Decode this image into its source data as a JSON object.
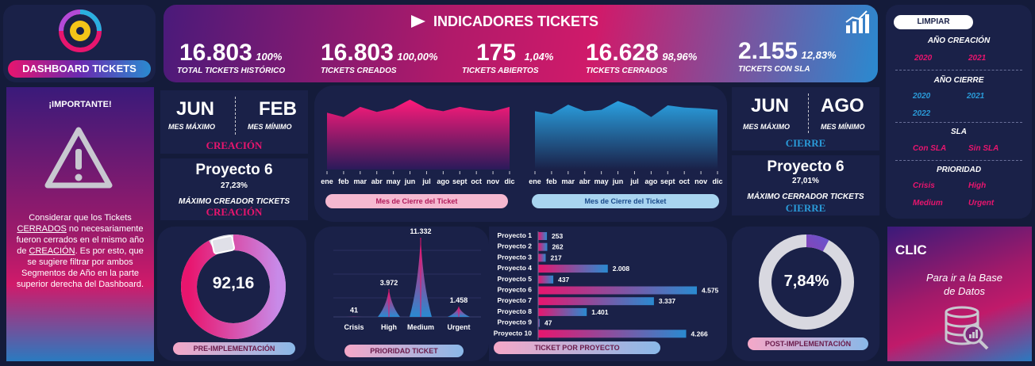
{
  "logo": {
    "label": "DASHBOARD TICKETS"
  },
  "header": {
    "title": "INDICADORES TICKETS",
    "kpis": [
      {
        "value": "16.803",
        "pct": "100%",
        "label": "TOTAL TICKETS HISTÓRICO"
      },
      {
        "value": "16.803",
        "pct": "100,00%",
        "label": "TICKETS CREADOS"
      },
      {
        "value": "175",
        "pct": "1,04%",
        "label": "TICKETS ABIERTOS"
      },
      {
        "value": "16.628",
        "pct": "98,96%",
        "label": "TICKETS CERRADOS"
      },
      {
        "value": "2.155",
        "pct": "12,83%",
        "label": "TICKETS CON SLA"
      }
    ]
  },
  "filters": {
    "clear_label": "LIMPIAR",
    "anio_creacion": {
      "title": "AÑO CREACIÓN",
      "items": [
        "2020",
        "2021"
      ]
    },
    "anio_cierre": {
      "title": "AÑO CIERRE",
      "items": [
        "2020",
        "2021",
        "2022"
      ]
    },
    "sla": {
      "title": "SLA",
      "items": [
        "Con SLA",
        "Sin SLA"
      ]
    },
    "prioridad": {
      "title": "PRIORIDAD",
      "items": [
        "Crisis",
        "High",
        "Medium",
        "Urgent"
      ]
    }
  },
  "important": {
    "title": "¡IMPORTANTE!",
    "text_a": "Considerar que los Tickets ",
    "text_b": "CERRADOS",
    "text_c": " no necesariamente fueron cerrados en el mismo año de ",
    "text_d": "CREACIÓN",
    "text_e": ". Es por esto, que se sugiere filtrar por ambos Segmentos de Año en la parte superior derecha del Dashboard."
  },
  "creacion": {
    "max_month": "JUN",
    "max_label": "MES MÁXIMO",
    "min_month": "FEB",
    "min_label": "MES MÍNIMO",
    "tag": "CREACIÓN",
    "project": "Proyecto 6",
    "project_pct": "27,23%",
    "project_label": "MÁXIMO CREADOR TICKETS",
    "project_tag": "CREACIÓN"
  },
  "cierre": {
    "max_month": "JUN",
    "max_label": "MES MÁXIMO",
    "min_month": "AGO",
    "min_label": "MES MÍNIMO",
    "tag": "CIERRE",
    "project": "Proyecto 6",
    "project_pct": "27,01%",
    "project_label": "MÁXIMO CERRADOR TICKETS",
    "project_tag": "CIERRE"
  },
  "area_charts": {
    "months": [
      "ene",
      "feb",
      "mar",
      "abr",
      "may",
      "jun",
      "jul",
      "ago",
      "sept",
      "oct",
      "nov",
      "dic"
    ],
    "left_label": "Mes de Cierre del Ticket",
    "right_label": "Mes de Cierre del Ticket"
  },
  "pre": {
    "value": "92,16",
    "label": "PRE-IMPLEMENTACIÓN",
    "fraction": 0.9216
  },
  "post": {
    "value": "7,84%",
    "label": "POST-IMPLEMENTACIÓN",
    "fraction": 0.0784
  },
  "clic": {
    "title": "CLIC",
    "text": "Para ir a la Base de Datos"
  },
  "chart_data": [
    {
      "type": "area",
      "categories": [
        "ene",
        "feb",
        "mar",
        "abr",
        "may",
        "jun",
        "jul",
        "ago",
        "sept",
        "oct",
        "nov",
        "dic"
      ],
      "values": [
        0.78,
        0.72,
        0.86,
        0.79,
        0.84,
        0.96,
        0.84,
        0.8,
        0.86,
        0.82,
        0.8,
        0.86
      ],
      "xlabel": "Mes de Cierre del Ticket",
      "color": "#e8156e"
    },
    {
      "type": "area",
      "categories": [
        "ene",
        "feb",
        "mar",
        "abr",
        "may",
        "jun",
        "jul",
        "ago",
        "sept",
        "oct",
        "nov",
        "dic"
      ],
      "values": [
        0.8,
        0.76,
        0.89,
        0.8,
        0.82,
        0.94,
        0.86,
        0.72,
        0.88,
        0.85,
        0.84,
        0.82
      ],
      "xlabel": "Mes de Cierre del Ticket",
      "color": "#2a9ad8"
    },
    {
      "type": "bar",
      "categories": [
        "Crisis",
        "High",
        "Medium",
        "Urgent"
      ],
      "values": [
        41,
        3972,
        11332,
        1458
      ],
      "labels": [
        "41",
        "3.972",
        "11.332",
        "1.458"
      ],
      "xlabel": "PRIORIDAD TICKET"
    },
    {
      "type": "bar",
      "orientation": "horizontal",
      "categories": [
        "Proyecto 1",
        "Proyecto 2",
        "Proyecto 3",
        "Proyecto 4",
        "Proyecto 5",
        "Proyecto 6",
        "Proyecto 7",
        "Proyecto 8",
        "Proyecto 9",
        "Proyecto 10"
      ],
      "values": [
        253,
        262,
        217,
        2008,
        437,
        4575,
        3337,
        1401,
        47,
        4266
      ],
      "labels": [
        "253",
        "262",
        "217",
        "2.008",
        "437",
        "4.575",
        "3.337",
        "1.401",
        "47",
        "4.266"
      ],
      "xlabel": "TICKET POR PROYECTO"
    }
  ]
}
